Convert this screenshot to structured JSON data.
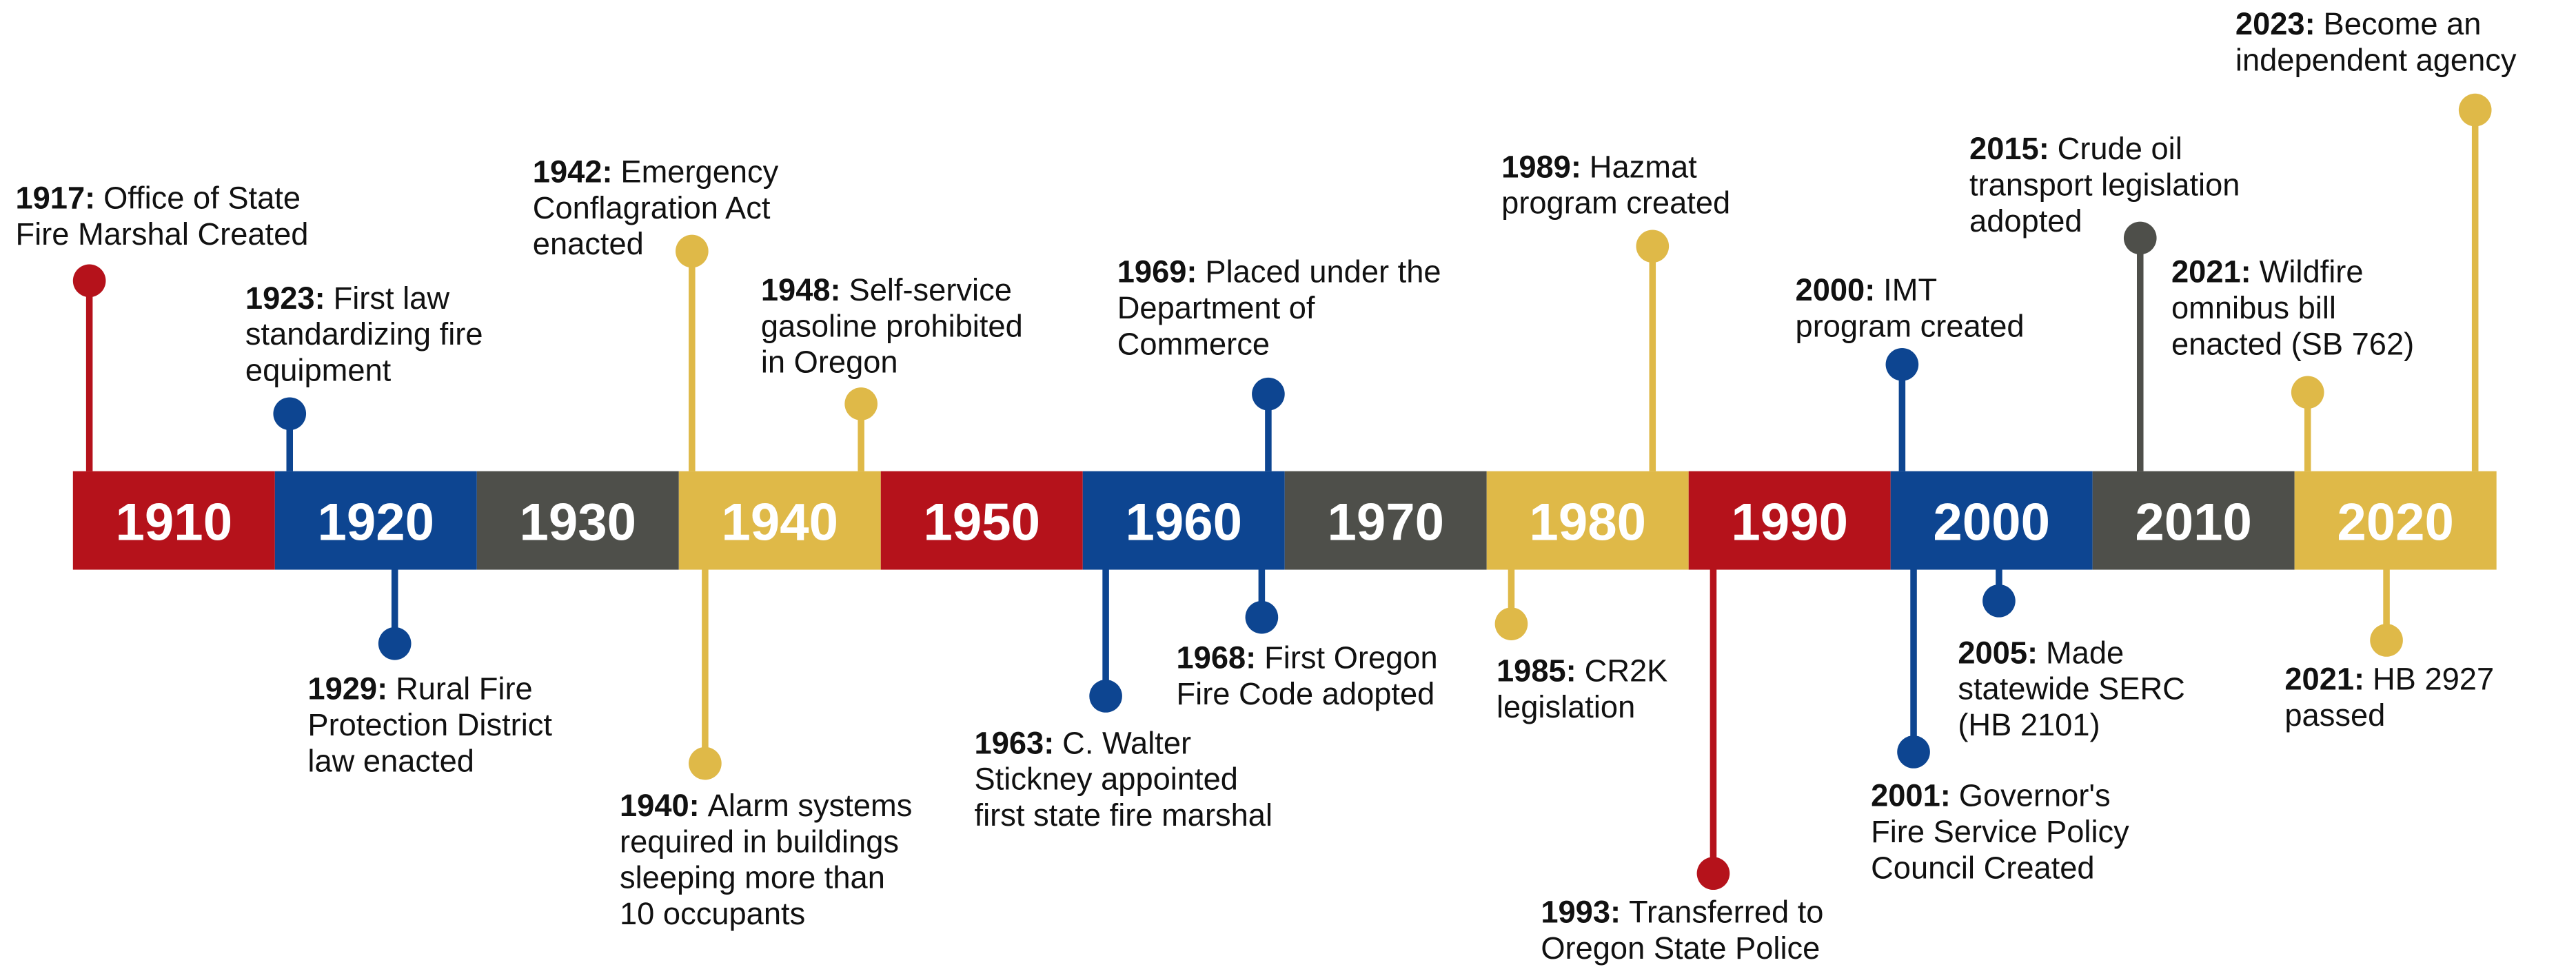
{
  "decades": [
    {
      "label": "1910",
      "color": "#b5121b"
    },
    {
      "label": "1920",
      "color": "#0d4591"
    },
    {
      "label": "1930",
      "color": "#4e4f4a"
    },
    {
      "label": "1940",
      "color": "#dfb948"
    },
    {
      "label": "1950",
      "color": "#b5121b"
    },
    {
      "label": "1960",
      "color": "#0d4591"
    },
    {
      "label": "1970",
      "color": "#4e4f4a"
    },
    {
      "label": "1980",
      "color": "#dfb948"
    },
    {
      "label": "1990",
      "color": "#b5121b"
    },
    {
      "label": "2000",
      "color": "#0d4591"
    },
    {
      "label": "2010",
      "color": "#4e4f4a"
    },
    {
      "label": "2020",
      "color": "#dfb948"
    }
  ],
  "events": [
    {
      "year": "1917:",
      "lines": [
        "Office of State",
        "Fire Marshal Created"
      ],
      "color": "#b5121b"
    },
    {
      "year": "1923:",
      "lines": [
        "First law",
        "standardizing fire",
        "equipment"
      ],
      "color": "#0d4591"
    },
    {
      "year": "1929:",
      "lines": [
        "Rural Fire",
        "Protection District",
        "law enacted"
      ],
      "color": "#0d4591"
    },
    {
      "year": "1942:",
      "lines": [
        "Emergency",
        "Conflagration Act",
        "enacted"
      ],
      "color": "#dfb948"
    },
    {
      "year": "1940:",
      "lines": [
        "Alarm systems",
        "required in buildings",
        "sleeping more than",
        "10 occupants"
      ],
      "color": "#dfb948"
    },
    {
      "year": "1948:",
      "lines": [
        "Self-service",
        "gasoline prohibited",
        "in Oregon"
      ],
      "color": "#dfb948"
    },
    {
      "year": "1963:",
      "lines": [
        "C. Walter",
        "Stickney appointed",
        "first state fire marshal"
      ],
      "color": "#0d4591"
    },
    {
      "year": "1969:",
      "lines": [
        "Placed under the",
        "Department of",
        "Commerce"
      ],
      "color": "#0d4591"
    },
    {
      "year": "1968:",
      "lines": [
        "First Oregon",
        "Fire Code adopted"
      ],
      "color": "#0d4591"
    },
    {
      "year": "1989:",
      "lines": [
        "Hazmat",
        "program created"
      ],
      "color": "#dfb948"
    },
    {
      "year": "1985:",
      "lines": [
        "CR2K",
        "legislation"
      ],
      "color": "#dfb948"
    },
    {
      "year": "1993:",
      "lines": [
        "Transferred to",
        "Oregon State Police"
      ],
      "color": "#b5121b"
    },
    {
      "year": "2000:",
      "lines": [
        "IMT",
        "program created"
      ],
      "color": "#0d4591"
    },
    {
      "year": "2001:",
      "lines": [
        "Governor's",
        "Fire Service Policy",
        "Council Created"
      ],
      "color": "#0d4591"
    },
    {
      "year": "2005:",
      "lines": [
        "Made",
        "statewide SERC",
        "(HB 2101)"
      ],
      "color": "#0d4591"
    },
    {
      "year": "2015:",
      "lines": [
        "Crude oil",
        "transport legislation",
        "adopted"
      ],
      "color": "#4e4f4a"
    },
    {
      "year": "2021:",
      "lines": [
        "Wildfire",
        "omnibus bill",
        "enacted (SB 762)"
      ],
      "color": "#dfb948"
    },
    {
      "year": "2021:",
      "lines": [
        "HB 2927",
        "passed"
      ],
      "color": "#dfb948"
    },
    {
      "year": "2023:",
      "lines": [
        "Become an",
        "independent agency"
      ],
      "color": "#dfb948"
    }
  ]
}
